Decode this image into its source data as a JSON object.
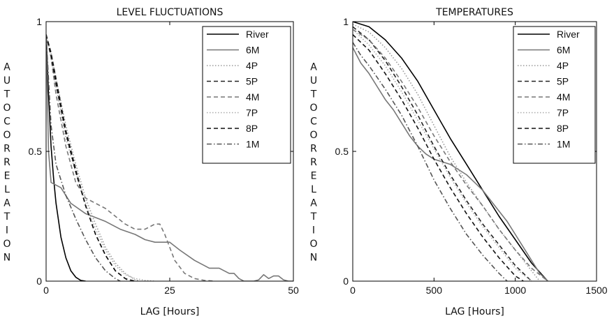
{
  "chart_data": [
    {
      "type": "line",
      "title": "LEVEL FLUCTUATIONS",
      "xlabel": "LAG [Hours]",
      "ylabel": "AUTOCORRELATION",
      "xlim": [
        0,
        50
      ],
      "ylim": [
        0,
        1
      ],
      "xticks": [
        0,
        25,
        50
      ],
      "yticks": [
        0,
        0.5,
        1
      ],
      "xtick_labels": [
        "0",
        "25",
        "50"
      ],
      "ytick_labels": [
        "0",
        "0.5",
        "1"
      ],
      "grid": false,
      "legend_position": "top-right",
      "series": [
        {
          "name": "River",
          "color": "#000000",
          "dash": "solid",
          "x": [
            0,
            0.5,
            1,
            1.5,
            2,
            3,
            4,
            5,
            6,
            7,
            8
          ],
          "y": [
            0.95,
            0.72,
            0.52,
            0.4,
            0.3,
            0.17,
            0.09,
            0.04,
            0.015,
            0.003,
            0
          ]
        },
        {
          "name": "6M",
          "color": "#777777",
          "dash": "solid",
          "x": [
            0,
            0.5,
            1,
            3,
            5,
            8,
            12,
            15,
            18,
            20,
            22,
            25,
            27,
            30,
            32,
            33,
            35,
            37,
            38,
            39,
            40,
            42,
            43,
            44,
            45,
            46,
            47,
            48,
            49,
            50
          ],
          "y": [
            0.95,
            0.5,
            0.38,
            0.36,
            0.3,
            0.26,
            0.23,
            0.2,
            0.18,
            0.16,
            0.15,
            0.15,
            0.12,
            0.08,
            0.06,
            0.05,
            0.05,
            0.03,
            0.03,
            0.01,
            0,
            0,
            0.005,
            0.025,
            0.01,
            0.02,
            0.02,
            0.005,
            0,
            0
          ]
        },
        {
          "name": "4P",
          "color": "#9a9a9a",
          "dash": "dotted",
          "x": [
            0,
            1,
            2,
            4,
            6,
            8,
            10,
            12,
            14,
            16,
            18,
            19
          ],
          "y": [
            0.95,
            0.88,
            0.78,
            0.6,
            0.45,
            0.32,
            0.22,
            0.13,
            0.07,
            0.03,
            0.005,
            0
          ]
        },
        {
          "name": "5P",
          "color": "#222222",
          "dash": "dashed",
          "x": [
            0,
            1,
            2,
            4,
            6,
            8,
            10,
            12,
            14,
            16,
            18
          ],
          "y": [
            0.95,
            0.88,
            0.78,
            0.58,
            0.43,
            0.29,
            0.18,
            0.1,
            0.04,
            0.01,
            0
          ]
        },
        {
          "name": "4M",
          "color": "#777777",
          "dash": "dashed",
          "x": [
            0,
            1,
            2,
            4,
            6,
            8,
            10,
            12,
            14,
            16,
            18,
            20,
            22,
            23,
            24,
            26,
            28,
            30,
            32,
            34
          ],
          "y": [
            0.95,
            0.86,
            0.72,
            0.52,
            0.38,
            0.32,
            0.3,
            0.28,
            0.25,
            0.22,
            0.2,
            0.2,
            0.22,
            0.22,
            0.18,
            0.08,
            0.03,
            0.01,
            0.003,
            0
          ]
        },
        {
          "name": "7P",
          "color": "#aaaaaa",
          "dash": "dotted",
          "x": [
            0,
            1,
            2,
            4,
            6,
            8,
            10,
            12,
            14,
            16,
            18,
            20,
            22
          ],
          "y": [
            0.95,
            0.86,
            0.75,
            0.55,
            0.42,
            0.3,
            0.2,
            0.12,
            0.06,
            0.025,
            0.01,
            0.003,
            0
          ]
        },
        {
          "name": "8P",
          "color": "#111111",
          "dash": "dashed",
          "x": [
            0,
            1,
            2,
            4,
            6,
            8,
            10,
            12,
            14,
            16,
            17
          ],
          "y": [
            0.95,
            0.87,
            0.76,
            0.57,
            0.42,
            0.29,
            0.18,
            0.1,
            0.04,
            0.01,
            0
          ]
        },
        {
          "name": "1M",
          "color": "#555555",
          "dash": "dashdot",
          "x": [
            0,
            1,
            2,
            4,
            6,
            8,
            10,
            12,
            14,
            15
          ],
          "y": [
            0.95,
            0.6,
            0.45,
            0.33,
            0.24,
            0.16,
            0.09,
            0.04,
            0.01,
            0
          ]
        }
      ]
    },
    {
      "type": "line",
      "title": "TEMPERATURES",
      "xlabel": "LAG [Hours]",
      "ylabel": "AUTOCORRELATION",
      "xlim": [
        0,
        1500
      ],
      "ylim": [
        0,
        1
      ],
      "xticks": [
        0,
        500,
        1000,
        1500
      ],
      "yticks": [
        0,
        0.5,
        1
      ],
      "xtick_labels": [
        "0",
        "500",
        "1000",
        "1500"
      ],
      "ytick_labels": [
        "0",
        "0.5",
        "1"
      ],
      "grid": false,
      "legend_position": "top-right",
      "series": [
        {
          "name": "River",
          "color": "#000000",
          "dash": "solid",
          "x": [
            0,
            100,
            200,
            300,
            400,
            500,
            600,
            700,
            800,
            900,
            1000,
            1100,
            1200
          ],
          "y": [
            1,
            0.98,
            0.93,
            0.86,
            0.77,
            0.66,
            0.55,
            0.45,
            0.35,
            0.25,
            0.16,
            0.07,
            0
          ]
        },
        {
          "name": "6M",
          "color": "#777777",
          "dash": "solid",
          "x": [
            0,
            50,
            100,
            150,
            200,
            250,
            300,
            350,
            400,
            450,
            500,
            550,
            600,
            650,
            700,
            750,
            800,
            850,
            900,
            950,
            1000,
            1050,
            1100,
            1150,
            1200
          ],
          "y": [
            0.9,
            0.84,
            0.8,
            0.75,
            0.7,
            0.66,
            0.61,
            0.56,
            0.52,
            0.49,
            0.47,
            0.46,
            0.45,
            0.43,
            0.41,
            0.38,
            0.35,
            0.31,
            0.27,
            0.23,
            0.18,
            0.13,
            0.08,
            0.03,
            0
          ]
        },
        {
          "name": "4P",
          "color": "#9a9a9a",
          "dash": "dotted",
          "x": [
            0,
            100,
            200,
            300,
            400,
            500,
            600,
            700,
            800,
            900,
            1000,
            1100,
            1150
          ],
          "y": [
            0.99,
            0.96,
            0.9,
            0.82,
            0.72,
            0.6,
            0.48,
            0.38,
            0.29,
            0.2,
            0.12,
            0.04,
            0
          ]
        },
        {
          "name": "5P",
          "color": "#222222",
          "dash": "dashed",
          "x": [
            0,
            100,
            200,
            300,
            400,
            500,
            600,
            700,
            800,
            900,
            1000,
            1100
          ],
          "y": [
            0.98,
            0.93,
            0.85,
            0.75,
            0.64,
            0.52,
            0.41,
            0.31,
            0.22,
            0.14,
            0.06,
            0
          ]
        },
        {
          "name": "4M",
          "color": "#777777",
          "dash": "dashed",
          "x": [
            0,
            100,
            200,
            300,
            400,
            500,
            600,
            700,
            800,
            900,
            1000,
            1100,
            1200
          ],
          "y": [
            0.97,
            0.93,
            0.86,
            0.77,
            0.67,
            0.56,
            0.46,
            0.37,
            0.29,
            0.2,
            0.12,
            0.05,
            0
          ]
        },
        {
          "name": "7P",
          "color": "#aaaaaa",
          "dash": "dotted",
          "x": [
            0,
            100,
            200,
            300,
            400,
            500,
            600,
            700,
            800,
            900,
            1000,
            1100
          ],
          "y": [
            0.97,
            0.91,
            0.83,
            0.73,
            0.62,
            0.51,
            0.4,
            0.3,
            0.21,
            0.13,
            0.05,
            0
          ]
        },
        {
          "name": "8P",
          "color": "#111111",
          "dash": "dashed",
          "x": [
            0,
            100,
            200,
            300,
            400,
            500,
            600,
            700,
            800,
            900,
            1000,
            1050
          ],
          "y": [
            0.95,
            0.89,
            0.8,
            0.7,
            0.59,
            0.47,
            0.36,
            0.26,
            0.17,
            0.09,
            0.02,
            0
          ]
        },
        {
          "name": "1M",
          "color": "#555555",
          "dash": "dashdot",
          "x": [
            0,
            50,
            100,
            200,
            300,
            400,
            500,
            600,
            700,
            800,
            900,
            950
          ],
          "y": [
            0.92,
            0.87,
            0.83,
            0.74,
            0.64,
            0.52,
            0.39,
            0.28,
            0.18,
            0.1,
            0.03,
            0
          ]
        }
      ]
    }
  ]
}
